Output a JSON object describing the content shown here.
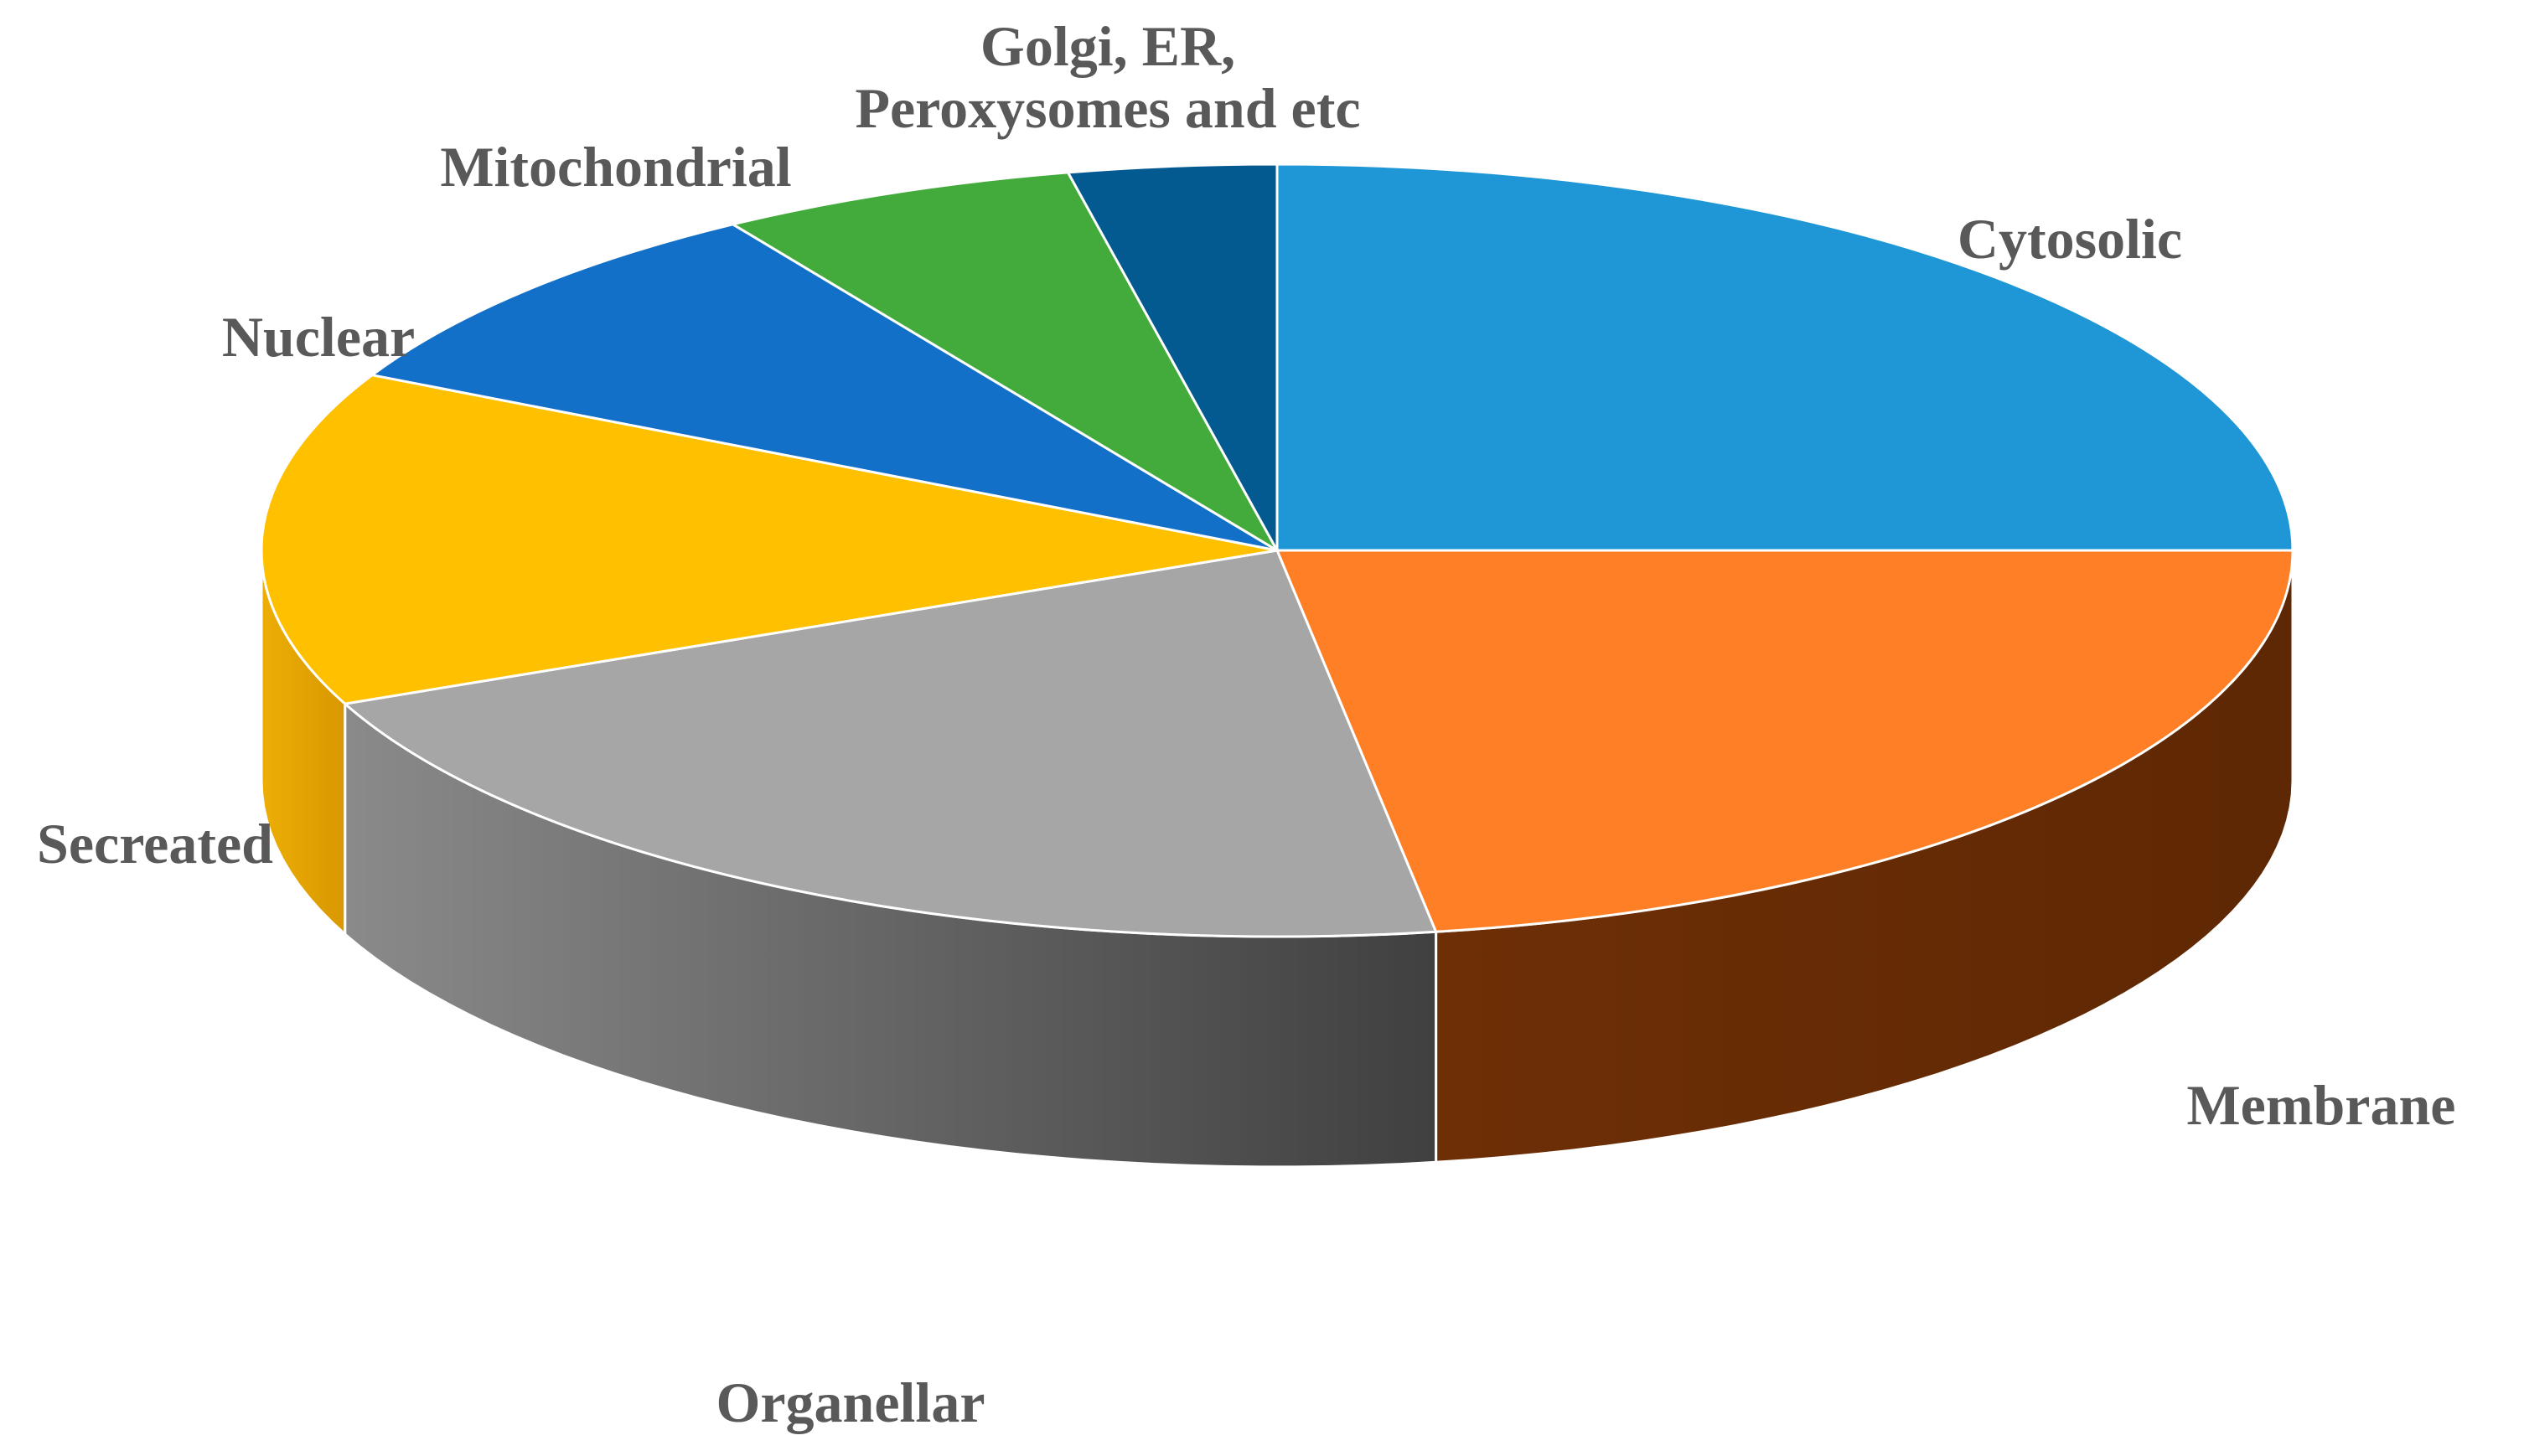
{
  "chart_data": {
    "type": "pie",
    "style": "3d",
    "title": "",
    "legend": "none",
    "slices": [
      {
        "label": "Cytosolic",
        "value": 25,
        "color": "#1F97D6",
        "side_color": "#1F6FA0"
      },
      {
        "label": "Membrane",
        "value": 22.5,
        "color": "#FF7F27",
        "side_color": "#6B2D06"
      },
      {
        "label": "Organellar",
        "value": 21,
        "color": "#A6A6A6",
        "side_color": "#5A5A5A"
      },
      {
        "label": "Secreated",
        "value": 14,
        "color": "#FFC000",
        "side_color": "#E6A200"
      },
      {
        "label": "Nuclear",
        "value": 8.5,
        "color": "#1370C8",
        "side_color": "#0D4F8F"
      },
      {
        "label": "Mitochondrial",
        "value": 5.7,
        "color": "#43AB3C",
        "side_color": "#2C7A27"
      },
      {
        "label": "Golgi, ER,\nPeroxysomes and etc",
        "value": 3.3,
        "color": "#035A90",
        "side_color": "#023E63"
      }
    ]
  }
}
